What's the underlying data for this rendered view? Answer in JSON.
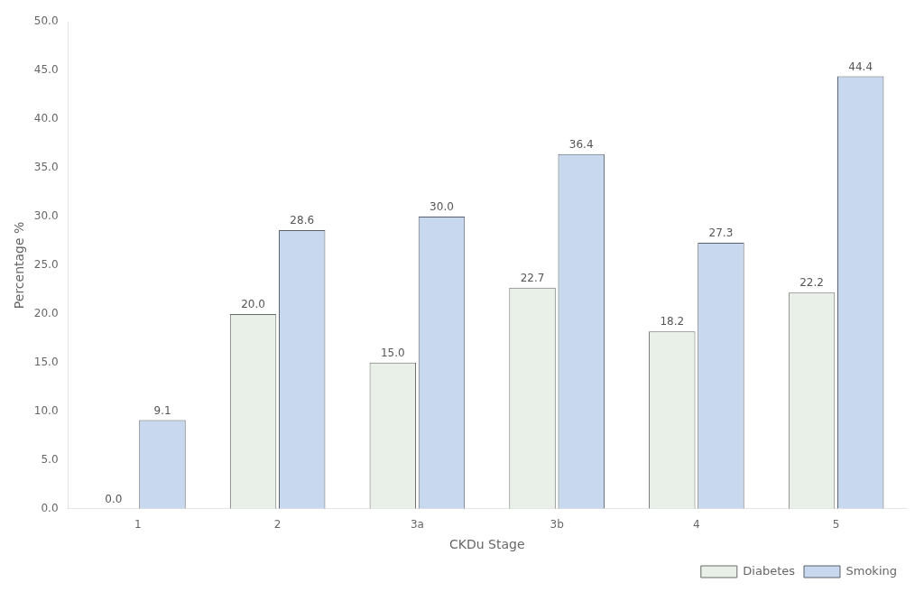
{
  "chart_data": {
    "type": "bar",
    "categories": [
      "1",
      "2",
      "3a",
      "3b",
      "4",
      "5"
    ],
    "series": [
      {
        "name": "Diabetes",
        "color": "#e8f0e8",
        "values": [
          0.0,
          20.0,
          15.0,
          22.7,
          18.2,
          22.2
        ],
        "value_labels": [
          "0.0",
          "20.0",
          "15.0",
          "22.7",
          "18.2",
          "22.2"
        ]
      },
      {
        "name": "Smoking",
        "color": "#c8d8ee",
        "values": [
          9.1,
          28.6,
          30.0,
          36.4,
          27.3,
          44.4
        ],
        "value_labels": [
          "9.1",
          "28.6",
          "30.0",
          "36.4",
          "27.3",
          "44.4"
        ]
      }
    ],
    "x_label": "CKDu Stage",
    "y_label": "Percentage %",
    "ylim": [
      0,
      50
    ],
    "yticks": [
      {
        "value": 0,
        "label": "0.0"
      },
      {
        "value": 5,
        "label": "5.0"
      },
      {
        "value": 10,
        "label": "10.0"
      },
      {
        "value": 15,
        "label": "15.0"
      },
      {
        "value": 20,
        "label": "20.0"
      },
      {
        "value": 25,
        "label": "25.0"
      },
      {
        "value": 30,
        "label": "30.0"
      },
      {
        "value": 35,
        "label": "35.0"
      },
      {
        "value": 40,
        "label": "40.0"
      },
      {
        "value": 45,
        "label": "45.0"
      },
      {
        "value": 50,
        "label": "50.0"
      }
    ],
    "grid": false,
    "legend": "lower right",
    "data_labels": true
  }
}
